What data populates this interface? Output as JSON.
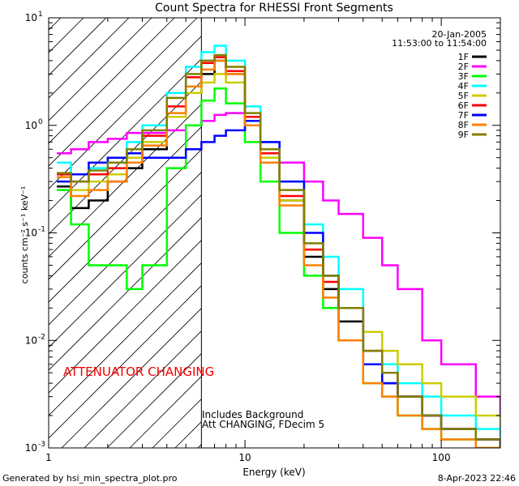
{
  "chart_data": {
    "type": "line",
    "title": "Count Spectra for RHESSI Front Segments",
    "xlabel": "Energy (keV)",
    "ylabel": "counts cm⁻² s⁻¹ keV⁻¹",
    "x_scale": "log",
    "y_scale": "log",
    "xlim": [
      1,
      200
    ],
    "ylim": [
      0.001,
      10
    ],
    "x_major_ticks": [
      {
        "value": 1,
        "label": "1"
      },
      {
        "value": 10,
        "label": "10"
      },
      {
        "value": 100,
        "label": "100"
      }
    ],
    "y_major_ticks": [
      {
        "value": 0.001,
        "base": "10",
        "exp": "-3"
      },
      {
        "value": 0.01,
        "base": "10",
        "exp": "-2"
      },
      {
        "value": 0.1,
        "base": "10",
        "exp": "-1"
      },
      {
        "value": 1,
        "base": "10",
        "exp": "0"
      },
      {
        "value": 10,
        "base": "10",
        "exp": "1"
      }
    ],
    "date_label": "20-Jan-2005",
    "time_label": "11:53:00 to 11:54:00",
    "shaded_region": {
      "from": 1,
      "to": 6,
      "style": "diagonal-hatch"
    },
    "annotations": {
      "attenuator": "ATTENUATOR CHANGING",
      "background": "Includes Background",
      "att_state": "Att CHANGING, FDecim 5"
    },
    "series": [
      {
        "name": "1F",
        "color": "#000000",
        "x": [
          1.1,
          1.3,
          1.6,
          2.0,
          2.5,
          3.0,
          4.0,
          5.0,
          6.0,
          7.0,
          8.0,
          10.0,
          12.0,
          15.0,
          20.0,
          25.0,
          30.0,
          40.0,
          50.0,
          60.0,
          80.0,
          100.0,
          150.0,
          200.0
        ],
        "y": [
          0.27,
          0.17,
          0.2,
          0.3,
          0.4,
          0.6,
          1.2,
          2.0,
          3.0,
          4.0,
          3.0,
          1.0,
          0.5,
          0.2,
          0.06,
          0.03,
          0.015,
          0.006,
          0.004,
          0.003,
          0.002,
          0.0015,
          0.0012,
          0.001
        ]
      },
      {
        "name": "2F",
        "color": "#ff00ff",
        "x": [
          1.1,
          1.3,
          1.6,
          2.0,
          2.5,
          3.0,
          4.0,
          5.0,
          6.0,
          7.0,
          8.0,
          10.0,
          12.0,
          15.0,
          20.0,
          25.0,
          30.0,
          40.0,
          50.0,
          60.0,
          80.0,
          100.0,
          150.0,
          200.0
        ],
        "y": [
          0.55,
          0.6,
          0.7,
          0.75,
          0.85,
          0.85,
          0.9,
          1.0,
          1.1,
          1.25,
          1.3,
          1.1,
          0.7,
          0.45,
          0.3,
          0.2,
          0.15,
          0.09,
          0.05,
          0.03,
          0.01,
          0.006,
          0.003,
          0.002
        ]
      },
      {
        "name": "3F",
        "color": "#00ff00",
        "x": [
          1.1,
          1.3,
          1.6,
          2.0,
          2.5,
          3.0,
          4.0,
          5.0,
          6.0,
          7.0,
          8.0,
          10.0,
          12.0,
          15.0,
          20.0,
          25.0,
          30.0,
          40.0,
          50.0,
          60.0,
          80.0,
          100.0,
          150.0,
          200.0
        ],
        "y": [
          0.25,
          0.12,
          0.05,
          0.05,
          0.03,
          0.05,
          0.4,
          1.0,
          1.7,
          2.2,
          1.6,
          0.7,
          0.3,
          0.1,
          0.04,
          0.02,
          0.01,
          0.004,
          0.003,
          0.002,
          0.0015,
          0.0012,
          0.001,
          0.0009
        ]
      },
      {
        "name": "4F",
        "color": "#00ffff",
        "x": [
          1.1,
          1.3,
          1.6,
          2.0,
          2.5,
          3.0,
          4.0,
          5.0,
          6.0,
          7.0,
          8.0,
          10.0,
          12.0,
          15.0,
          20.0,
          25.0,
          30.0,
          40.0,
          50.0,
          60.0,
          80.0,
          100.0,
          150.0,
          200.0
        ],
        "y": [
          0.45,
          0.35,
          0.4,
          0.5,
          0.7,
          1.0,
          2.0,
          3.5,
          4.8,
          5.5,
          4.0,
          1.5,
          0.7,
          0.3,
          0.12,
          0.06,
          0.03,
          0.012,
          0.006,
          0.004,
          0.003,
          0.002,
          0.0015,
          0.001
        ]
      },
      {
        "name": "5F",
        "color": "#cccc00",
        "x": [
          1.1,
          1.3,
          1.6,
          2.0,
          2.5,
          3.0,
          4.0,
          5.0,
          6.0,
          7.0,
          8.0,
          10.0,
          12.0,
          15.0,
          20.0,
          25.0,
          30.0,
          40.0,
          50.0,
          60.0,
          80.0,
          100.0,
          150.0,
          200.0
        ],
        "y": [
          0.3,
          0.25,
          0.3,
          0.35,
          0.5,
          0.7,
          1.2,
          2.0,
          2.5,
          3.0,
          2.5,
          1.0,
          0.5,
          0.2,
          0.07,
          0.04,
          0.02,
          0.012,
          0.008,
          0.006,
          0.004,
          0.003,
          0.002,
          0.0015
        ]
      },
      {
        "name": "6F",
        "color": "#ff0000",
        "x": [
          1.1,
          1.3,
          1.6,
          2.0,
          2.5,
          3.0,
          4.0,
          5.0,
          6.0,
          7.0,
          8.0,
          10.0,
          12.0,
          15.0,
          20.0,
          25.0,
          30.0,
          40.0,
          50.0,
          60.0,
          80.0,
          100.0,
          150.0,
          200.0
        ],
        "y": [
          0.35,
          0.3,
          0.35,
          0.4,
          0.55,
          0.8,
          1.5,
          2.8,
          3.8,
          4.3,
          3.2,
          1.2,
          0.55,
          0.22,
          0.07,
          0.035,
          0.02,
          0.008,
          0.005,
          0.003,
          0.002,
          0.0015,
          0.0012,
          0.001
        ]
      },
      {
        "name": "7F",
        "color": "#0000ff",
        "x": [
          1.1,
          1.3,
          1.6,
          2.0,
          2.5,
          3.0,
          4.0,
          5.0,
          6.0,
          7.0,
          8.0,
          10.0,
          12.0,
          15.0,
          20.0,
          25.0,
          30.0,
          40.0,
          50.0,
          60.0,
          80.0,
          100.0,
          150.0,
          200.0
        ],
        "y": [
          0.3,
          0.35,
          0.45,
          0.5,
          0.55,
          0.5,
          0.5,
          0.6,
          0.7,
          0.8,
          0.9,
          1.1,
          0.7,
          0.3,
          0.1,
          0.04,
          0.02,
          0.006,
          0.004,
          0.003,
          0.002,
          0.0015,
          0.0012,
          0.001
        ]
      },
      {
        "name": "8F",
        "color": "#ff8000",
        "x": [
          1.1,
          1.3,
          1.6,
          2.0,
          2.5,
          3.0,
          4.0,
          5.0,
          6.0,
          7.0,
          8.0,
          10.0,
          12.0,
          15.0,
          20.0,
          25.0,
          30.0,
          40.0,
          50.0,
          60.0,
          80.0,
          100.0,
          150.0,
          200.0
        ],
        "y": [
          0.33,
          0.22,
          0.25,
          0.3,
          0.45,
          0.65,
          1.3,
          2.3,
          3.3,
          4.0,
          3.0,
          1.0,
          0.45,
          0.18,
          0.05,
          0.025,
          0.01,
          0.004,
          0.003,
          0.002,
          0.0015,
          0.0012,
          0.001,
          0.0009
        ]
      },
      {
        "name": "9F",
        "color": "#808000",
        "x": [
          1.1,
          1.3,
          1.6,
          2.0,
          2.5,
          3.0,
          4.0,
          5.0,
          6.0,
          7.0,
          8.0,
          10.0,
          12.0,
          15.0,
          20.0,
          25.0,
          30.0,
          40.0,
          50.0,
          60.0,
          80.0,
          100.0,
          150.0,
          200.0
        ],
        "y": [
          0.36,
          0.3,
          0.38,
          0.45,
          0.6,
          0.9,
          1.8,
          3.0,
          4.0,
          4.5,
          3.5,
          1.3,
          0.6,
          0.25,
          0.08,
          0.04,
          0.02,
          0.008,
          0.005,
          0.003,
          0.002,
          0.0015,
          0.0012,
          0.001
        ]
      }
    ]
  },
  "footer": {
    "generated_by": "Generated by hsi_min_spectra_plot.pro",
    "timestamp": "8-Apr-2023 22:46"
  }
}
